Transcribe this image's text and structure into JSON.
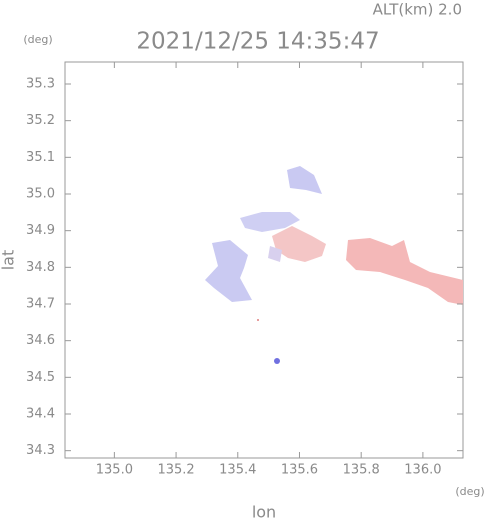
{
  "chart_data": {
    "type": "map",
    "title": "2021/12/25 14:35:47",
    "subtitle": "ALT(km) 2.0",
    "x_label": "lon",
    "x_unit": "(deg)",
    "y_label": "lat",
    "y_unit": "(deg)",
    "xlim": [
      134.84,
      136.13
    ],
    "ylim": [
      34.28,
      35.36
    ],
    "xticks": [
      {
        "value": 135.0,
        "label": "135.0"
      },
      135.2,
      135.4,
      135.6,
      135.8,
      {
        "value": 136.0,
        "label": "136.0"
      }
    ],
    "yticks": [
      34.3,
      34.4,
      34.5,
      34.6,
      34.7,
      34.8,
      34.9,
      {
        "value": 35.0,
        "label": "35.0"
      },
      35.1,
      35.2,
      35.3
    ]
  }
}
